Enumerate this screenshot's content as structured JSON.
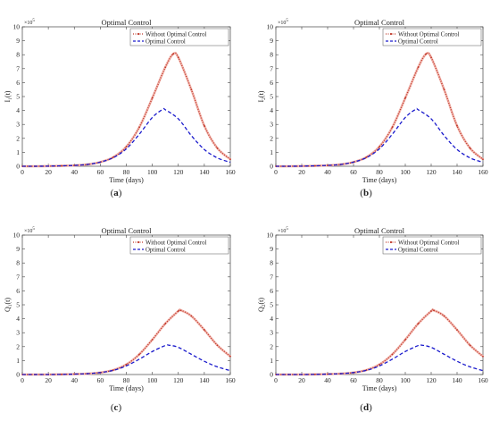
{
  "chart_data": [
    {
      "type": "line",
      "title": "Optimal Control",
      "panel_label_open": "(",
      "panel_label_letter": "a",
      "panel_label_close": ")",
      "xlabel": "Time (days)",
      "ylabel_main": "I",
      "ylabel_sub": "1",
      "ylabel_tail": "(t)",
      "y_exponent_base": "×10",
      "y_exponent_power": "5",
      "xlim": [
        0,
        160
      ],
      "ylim": [
        0,
        10
      ],
      "xticks": [
        0,
        20,
        40,
        60,
        80,
        100,
        120,
        140,
        160
      ],
      "yticks": [
        0,
        1,
        2,
        3,
        4,
        5,
        6,
        7,
        8,
        9,
        10
      ],
      "legend_position": "top-right",
      "grid": false,
      "series": [
        {
          "name": "Without Optimal Control",
          "color": "#c0392b",
          "style": "dotted-marker",
          "x": [
            0,
            10,
            20,
            30,
            40,
            50,
            60,
            70,
            80,
            90,
            100,
            110,
            116,
            120,
            130,
            140,
            150,
            160
          ],
          "y": [
            0.0,
            0.0,
            0.01,
            0.03,
            0.06,
            0.13,
            0.3,
            0.65,
            1.4,
            2.8,
            4.9,
            7.1,
            8.05,
            7.8,
            5.5,
            2.9,
            1.3,
            0.5
          ]
        },
        {
          "name": "Optimal Control",
          "color": "#1a1acc",
          "style": "dashed",
          "x": [
            0,
            10,
            20,
            30,
            40,
            50,
            60,
            70,
            80,
            90,
            100,
            108,
            110,
            120,
            130,
            140,
            150,
            160
          ],
          "y": [
            0.0,
            0.0,
            0.01,
            0.03,
            0.06,
            0.13,
            0.3,
            0.62,
            1.25,
            2.3,
            3.5,
            4.08,
            4.05,
            3.4,
            2.2,
            1.2,
            0.6,
            0.28
          ]
        }
      ]
    },
    {
      "type": "line",
      "title": "Optimal Control",
      "panel_label_open": "(",
      "panel_label_letter": "b",
      "panel_label_close": ")",
      "xlabel": "Time (days)",
      "ylabel_main": "I",
      "ylabel_sub": "2",
      "ylabel_tail": "(t)",
      "y_exponent_base": "×10",
      "y_exponent_power": "5",
      "xlim": [
        0,
        160
      ],
      "ylim": [
        0,
        10
      ],
      "xticks": [
        0,
        20,
        40,
        60,
        80,
        100,
        120,
        140,
        160
      ],
      "yticks": [
        0,
        1,
        2,
        3,
        4,
        5,
        6,
        7,
        8,
        9,
        10
      ],
      "legend_position": "top-right",
      "grid": false,
      "series": [
        {
          "name": "Without Optimal Control",
          "color": "#c0392b",
          "style": "dotted-marker",
          "x": [
            0,
            10,
            20,
            30,
            40,
            50,
            60,
            70,
            80,
            90,
            100,
            110,
            116,
            120,
            130,
            140,
            150,
            160
          ],
          "y": [
            0.0,
            0.0,
            0.01,
            0.03,
            0.06,
            0.13,
            0.3,
            0.65,
            1.4,
            2.8,
            4.9,
            7.1,
            8.05,
            7.8,
            5.5,
            2.9,
            1.3,
            0.5
          ]
        },
        {
          "name": "Optimal Control",
          "color": "#1a1acc",
          "style": "dashed",
          "x": [
            0,
            10,
            20,
            30,
            40,
            50,
            60,
            70,
            80,
            90,
            100,
            108,
            110,
            120,
            130,
            140,
            150,
            160
          ],
          "y": [
            0.0,
            0.0,
            0.01,
            0.03,
            0.06,
            0.13,
            0.3,
            0.62,
            1.25,
            2.3,
            3.5,
            4.08,
            4.05,
            3.4,
            2.2,
            1.2,
            0.6,
            0.28
          ]
        }
      ]
    },
    {
      "type": "line",
      "title": "Optimal Control",
      "panel_label_open": "(",
      "panel_label_letter": "c",
      "panel_label_close": ")",
      "xlabel": "Time (days)",
      "ylabel_main": "Q",
      "ylabel_sub": "1",
      "ylabel_tail": "(t)",
      "y_exponent_base": "×10",
      "y_exponent_power": "5",
      "xlim": [
        0,
        160
      ],
      "ylim": [
        0,
        10
      ],
      "xticks": [
        0,
        20,
        40,
        60,
        80,
        100,
        120,
        140,
        160
      ],
      "yticks": [
        0,
        1,
        2,
        3,
        4,
        5,
        6,
        7,
        8,
        9,
        10
      ],
      "legend_position": "top-right",
      "grid": false,
      "series": [
        {
          "name": "Without Optimal Control",
          "color": "#c0392b",
          "style": "dotted-marker",
          "x": [
            0,
            10,
            20,
            30,
            40,
            50,
            60,
            70,
            80,
            90,
            100,
            110,
            120,
            122,
            130,
            140,
            150,
            160
          ],
          "y": [
            0.0,
            0.0,
            0.0,
            0.01,
            0.03,
            0.06,
            0.14,
            0.32,
            0.72,
            1.45,
            2.5,
            3.65,
            4.55,
            4.6,
            4.2,
            3.2,
            2.1,
            1.3
          ]
        },
        {
          "name": "Optimal Control",
          "color": "#1a1acc",
          "style": "dashed",
          "x": [
            0,
            10,
            20,
            30,
            40,
            50,
            60,
            70,
            80,
            90,
            100,
            110,
            113,
            120,
            130,
            140,
            150,
            160
          ],
          "y": [
            0.0,
            0.0,
            0.0,
            0.01,
            0.03,
            0.06,
            0.14,
            0.3,
            0.62,
            1.1,
            1.65,
            2.08,
            2.1,
            1.95,
            1.45,
            0.95,
            0.55,
            0.28
          ]
        }
      ]
    },
    {
      "type": "line",
      "title": "Optimal Control",
      "panel_label_open": "(",
      "panel_label_letter": "d",
      "panel_label_close": ")",
      "xlabel": "Time (days)",
      "ylabel_main": "Q",
      "ylabel_sub": "2",
      "ylabel_tail": "(t)",
      "y_exponent_base": "×10",
      "y_exponent_power": "5",
      "xlim": [
        0,
        160
      ],
      "ylim": [
        0,
        10
      ],
      "xticks": [
        0,
        20,
        40,
        60,
        80,
        100,
        120,
        140,
        160
      ],
      "yticks": [
        0,
        1,
        2,
        3,
        4,
        5,
        6,
        7,
        8,
        9,
        10
      ],
      "legend_position": "top-right",
      "grid": false,
      "series": [
        {
          "name": "Without Optimal Control",
          "color": "#c0392b",
          "style": "dotted-marker",
          "x": [
            0,
            10,
            20,
            30,
            40,
            50,
            60,
            70,
            80,
            90,
            100,
            110,
            120,
            122,
            130,
            140,
            150,
            160
          ],
          "y": [
            0.0,
            0.0,
            0.0,
            0.01,
            0.03,
            0.06,
            0.14,
            0.32,
            0.72,
            1.45,
            2.5,
            3.65,
            4.55,
            4.6,
            4.2,
            3.2,
            2.1,
            1.3
          ]
        },
        {
          "name": "Optimal Control",
          "color": "#1a1acc",
          "style": "dashed",
          "x": [
            0,
            10,
            20,
            30,
            40,
            50,
            60,
            70,
            80,
            90,
            100,
            110,
            113,
            120,
            130,
            140,
            150,
            160
          ],
          "y": [
            0.0,
            0.0,
            0.0,
            0.01,
            0.03,
            0.06,
            0.14,
            0.3,
            0.62,
            1.1,
            1.65,
            2.08,
            2.1,
            1.95,
            1.45,
            0.95,
            0.55,
            0.28
          ]
        }
      ]
    }
  ]
}
